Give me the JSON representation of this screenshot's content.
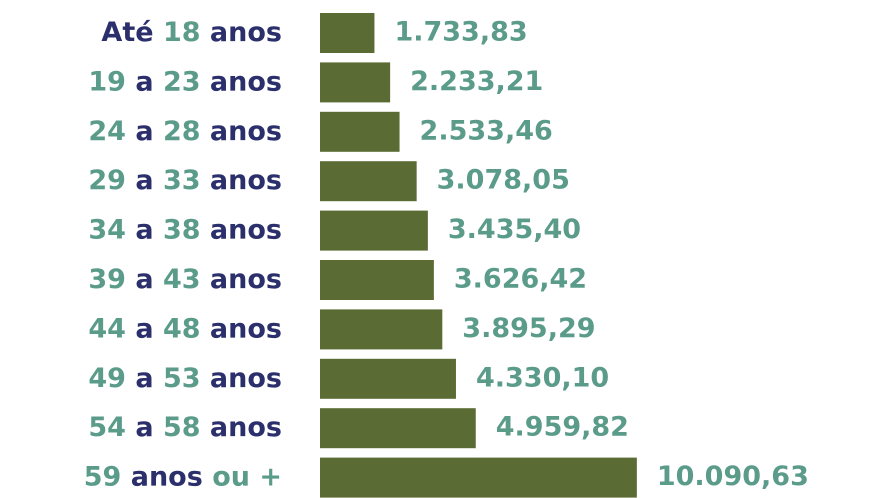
{
  "chart_data": {
    "type": "bar",
    "orientation": "horizontal",
    "color": "#5a6b34",
    "categories": [
      "Até 18 anos",
      "19 a 23 anos",
      "24 a 28 anos",
      "29 a 33 anos",
      "34 a 38 anos",
      "39 a 43 anos",
      "44 a 48 anos",
      "49 a 53 anos",
      "54 a 58 anos",
      "59 anos ou +"
    ],
    "values": [
      1733.83,
      2233.21,
      2533.46,
      3078.05,
      3435.4,
      3626.42,
      3895.29,
      4330.1,
      4959.82,
      10090.63
    ],
    "value_labels": [
      "1.733,83",
      "2.233,21",
      "2.533,46",
      "3.078,05",
      "3.435,40",
      "3.626,42",
      "3.895,29",
      "4.330,10",
      "4.959,82",
      "10.090,63"
    ]
  }
}
